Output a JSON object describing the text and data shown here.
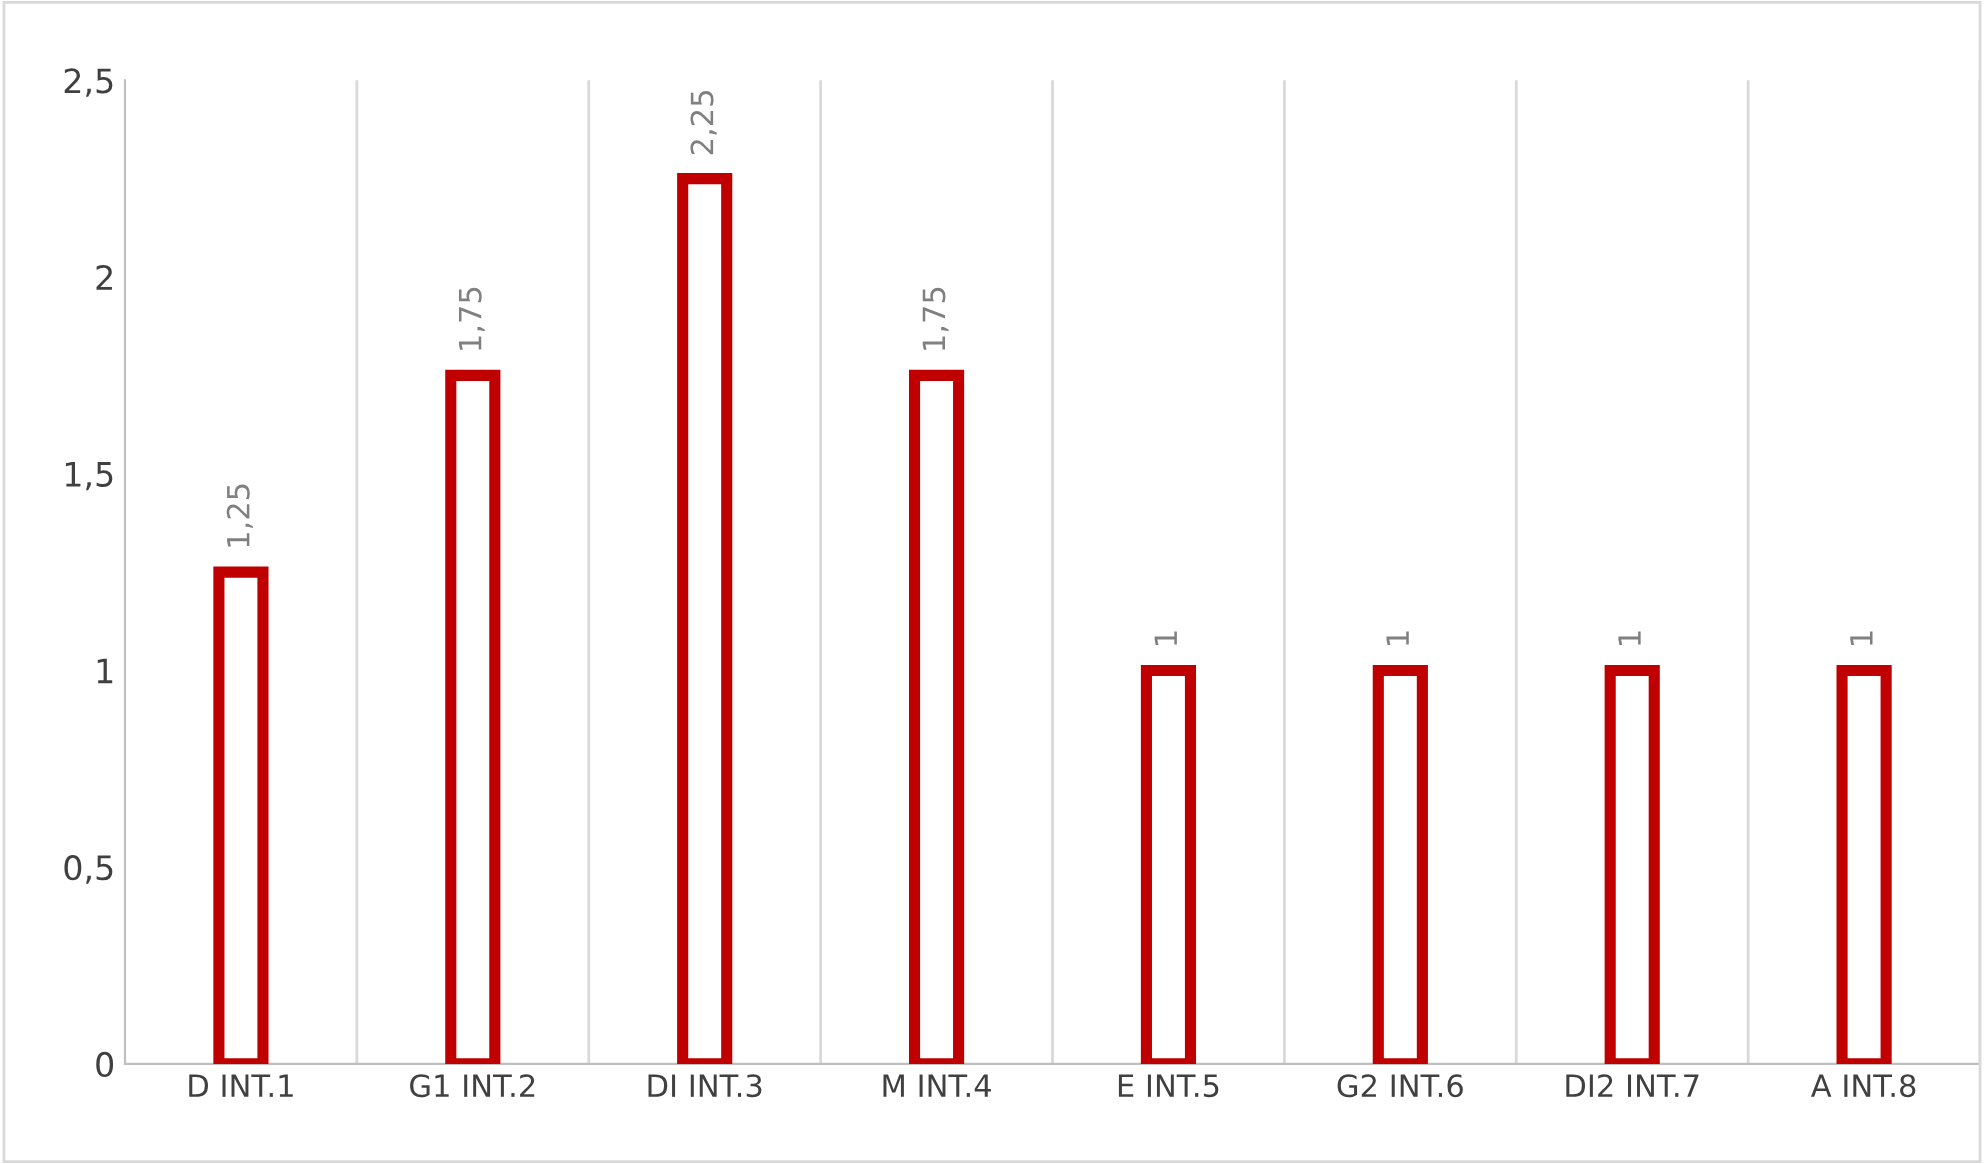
{
  "chart_data": {
    "type": "bar",
    "categories": [
      "D INT.1",
      "G1 INT.2",
      "DI INT.3",
      "M INT.4",
      "E INT.5",
      "G2 INT.6",
      "DI2 INT.7",
      "A INT.8"
    ],
    "values": [
      1.25,
      1.75,
      2.25,
      1.75,
      1,
      1,
      1,
      1
    ],
    "value_labels": [
      "1,25",
      "1,75",
      "2,25",
      "1,75",
      "1",
      "1",
      "1",
      "1"
    ],
    "color": "#c00000",
    "ylim": [
      0,
      2.5
    ],
    "yticks": [
      0,
      {
        "value": 0.5,
        "label": "0,5"
      },
      1,
      {
        "value": 1.5,
        "label": "1,5"
      },
      2,
      {
        "value": 2.5,
        "label": "2,5"
      }
    ],
    "grid": "x"
  }
}
